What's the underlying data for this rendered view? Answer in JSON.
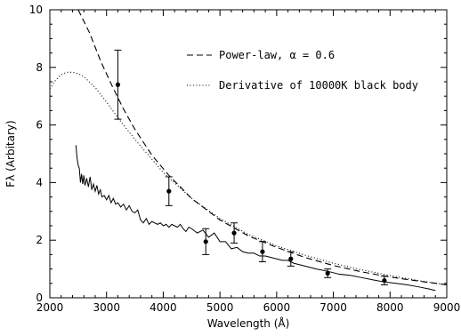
{
  "chart_data": {
    "type": "line",
    "xlabel": "Wavelength (Å)",
    "ylabel": "Fλ (Arbitary)",
    "xlim": [
      2000,
      9000
    ],
    "ylim": [
      0,
      10
    ],
    "xticks": [
      2000,
      3000,
      4000,
      5000,
      6000,
      7000,
      8000,
      9000
    ],
    "yticks": [
      0,
      2,
      4,
      6,
      8,
      10
    ],
    "grid": false,
    "legend_position": "top-right",
    "series": [
      {
        "name": "Power-law, α = 0.6",
        "style": "dashed",
        "x": [
          2500,
          2700,
          2900,
          3100,
          3300,
          3500,
          3800,
          4100,
          4500,
          5000,
          5500,
          6000,
          6500,
          7000,
          7500,
          8000,
          8500,
          9000
        ],
        "y": [
          10.0,
          9.2,
          8.2,
          7.35,
          6.55,
          5.85,
          4.95,
          4.25,
          3.45,
          2.7,
          2.15,
          1.75,
          1.4,
          1.12,
          0.9,
          0.72,
          0.58,
          0.45
        ]
      },
      {
        "name": "Derivative of 10000K black body",
        "style": "dotted",
        "x": [
          2000,
          2100,
          2200,
          2300,
          2400,
          2500,
          2600,
          2800,
          3000,
          3200,
          3500,
          4000,
          4500,
          5000,
          5500,
          6000,
          6500,
          7000,
          7500,
          8000,
          8500,
          9000
        ],
        "y": [
          7.25,
          7.55,
          7.75,
          7.83,
          7.83,
          7.78,
          7.68,
          7.3,
          6.8,
          6.25,
          5.5,
          4.35,
          3.45,
          2.75,
          2.2,
          1.8,
          1.48,
          1.2,
          0.97,
          0.77,
          0.6,
          0.45
        ]
      },
      {
        "name": "",
        "style": "solid",
        "x": [
          2460,
          2480,
          2500,
          2520,
          2540,
          2560,
          2580,
          2600,
          2620,
          2650,
          2680,
          2710,
          2740,
          2770,
          2800,
          2830,
          2860,
          2890,
          2920,
          2960,
          3000,
          3040,
          3080,
          3120,
          3160,
          3200,
          3250,
          3300,
          3350,
          3400,
          3450,
          3500,
          3550,
          3600,
          3650,
          3700,
          3750,
          3800,
          3850,
          3900,
          3950,
          4000,
          4050,
          4100,
          4150,
          4200,
          4250,
          4300,
          4350,
          4400,
          4450,
          4500,
          4600,
          4700,
          4800,
          4900,
          5000,
          5100,
          5200,
          5300,
          5400,
          5500,
          5600,
          5700,
          5800,
          5900,
          6000,
          6100,
          6200,
          6300,
          6400,
          6500,
          6700,
          6900,
          7100,
          7300,
          7500,
          7700,
          7900,
          8100,
          8300,
          8500,
          8700,
          8800
        ],
        "y": [
          5.3,
          4.85,
          4.6,
          4.5,
          4.0,
          4.3,
          3.95,
          4.25,
          3.9,
          4.15,
          3.85,
          4.2,
          3.75,
          3.95,
          3.7,
          3.9,
          3.6,
          3.75,
          3.5,
          3.55,
          3.4,
          3.55,
          3.3,
          3.45,
          3.25,
          3.3,
          3.15,
          3.25,
          3.05,
          3.2,
          3.0,
          2.95,
          3.05,
          2.7,
          2.6,
          2.75,
          2.55,
          2.65,
          2.6,
          2.55,
          2.6,
          2.5,
          2.55,
          2.45,
          2.55,
          2.5,
          2.45,
          2.55,
          2.4,
          2.3,
          2.45,
          2.4,
          2.25,
          2.35,
          2.1,
          2.25,
          1.95,
          1.95,
          1.7,
          1.75,
          1.6,
          1.55,
          1.55,
          1.45,
          1.45,
          1.4,
          1.35,
          1.3,
          1.3,
          1.2,
          1.15,
          1.1,
          1.0,
          0.92,
          0.82,
          0.78,
          0.7,
          0.62,
          0.55,
          0.5,
          0.45,
          0.38,
          0.3,
          0.25
        ]
      },
      {
        "name": "",
        "style": "points-with-errorbars",
        "x": [
          3200,
          4100,
          4750,
          5250,
          5750,
          6250,
          6900,
          7900
        ],
        "y": [
          7.4,
          3.7,
          1.95,
          2.25,
          1.6,
          1.35,
          0.85,
          0.6
        ],
        "err": [
          1.2,
          0.5,
          0.45,
          0.35,
          0.35,
          0.25,
          0.15,
          0.15
        ]
      }
    ]
  }
}
